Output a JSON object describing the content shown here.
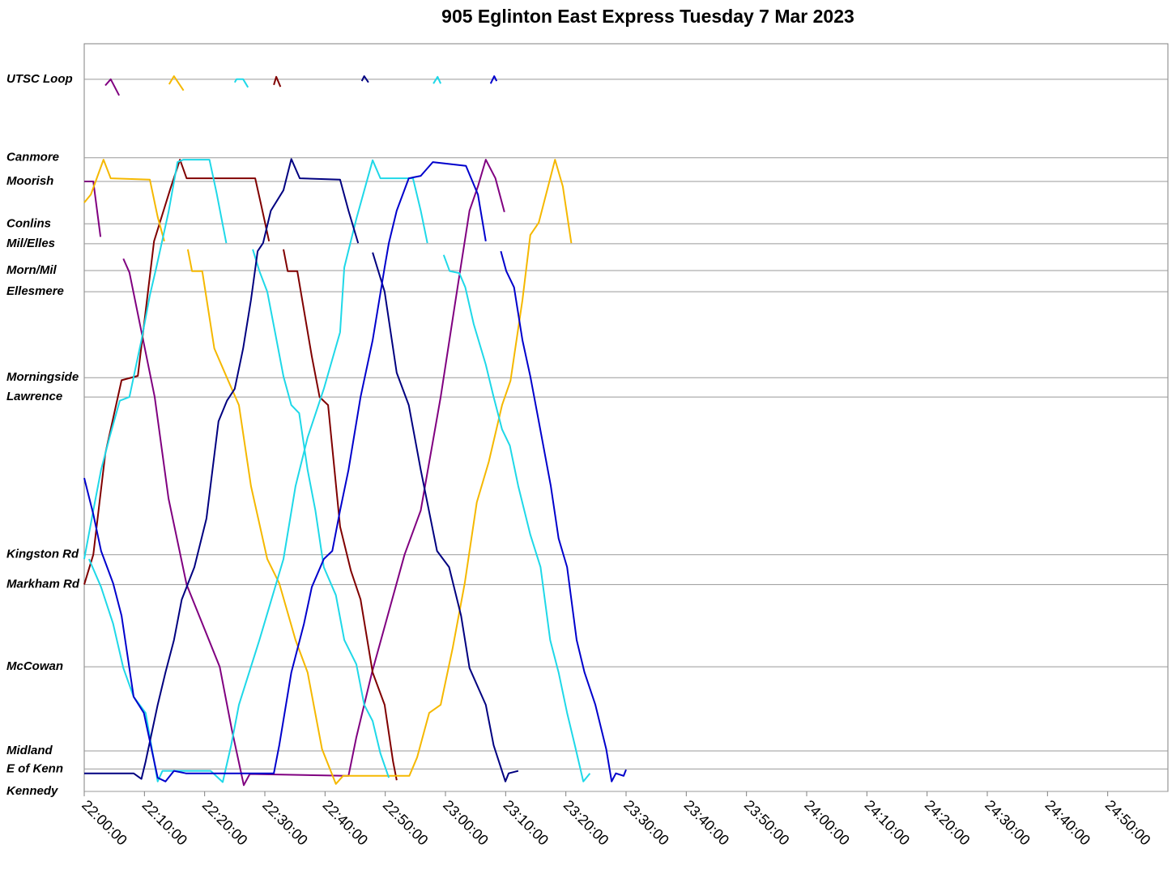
{
  "chart_data": {
    "type": "line",
    "title": "905 Eglinton East Express Tuesday 7 Mar 2023",
    "xlim": [
      0,
      180
    ],
    "xticks": [
      {
        "value": 0,
        "label": "22:00:00"
      },
      {
        "value": 10,
        "label": "22:10:00"
      },
      {
        "value": 20,
        "label": "22:20:00"
      },
      {
        "value": 30,
        "label": "22:30:00"
      },
      {
        "value": 40,
        "label": "22:40:00"
      },
      {
        "value": 50,
        "label": "22:50:00"
      },
      {
        "value": 60,
        "label": "23:00:00"
      },
      {
        "value": 70,
        "label": "23:10:00"
      },
      {
        "value": 80,
        "label": "23:20:00"
      },
      {
        "value": 90,
        "label": "23:30:00"
      },
      {
        "value": 100,
        "label": "23:40:00"
      },
      {
        "value": 110,
        "label": "23:50:00"
      },
      {
        "value": 120,
        "label": "24:00:00"
      },
      {
        "value": 130,
        "label": "24:10:00"
      },
      {
        "value": 140,
        "label": "24:20:00"
      },
      {
        "value": 150,
        "label": "24:30:00"
      },
      {
        "value": 160,
        "label": "24:40:00"
      },
      {
        "value": 170,
        "label": "24:50:00"
      }
    ],
    "ylim": [
      0,
      12
    ],
    "yticks": [
      {
        "value": 0,
        "label": "Kennedy"
      },
      {
        "value": 0.36,
        "label": "E of Kenn"
      },
      {
        "value": 0.65,
        "label": "Midland"
      },
      {
        "value": 2.0,
        "label": "McCowan"
      },
      {
        "value": 3.32,
        "label": "Markham Rd"
      },
      {
        "value": 3.8,
        "label": "Kingston Rd"
      },
      {
        "value": 6.33,
        "label": "Lawrence"
      },
      {
        "value": 6.64,
        "label": "Morningside"
      },
      {
        "value": 8.02,
        "label": "Ellesmere"
      },
      {
        "value": 8.36,
        "label": "Morn/Mil"
      },
      {
        "value": 8.79,
        "label": "Mil/Elles"
      },
      {
        "value": 9.11,
        "label": "Conlins"
      },
      {
        "value": 9.79,
        "label": "Moorish"
      },
      {
        "value": 10.17,
        "label": "Canmore"
      },
      {
        "value": 11.43,
        "label": "UTSC Loop"
      }
    ],
    "grid": true,
    "series": [
      {
        "color": "#800080",
        "x": [
          0,
          1.5,
          2.7,
          null,
          3.5,
          4.4,
          5.8,
          null,
          6.5,
          7.5,
          11.7,
          14,
          17,
          22.5,
          24.5,
          26.5,
          27.5,
          43.5,
          43.9,
          45.2,
          47.8,
          53.2,
          55.9,
          59.2,
          61.9,
          64,
          65.4,
          66.7,
          68.3,
          69.8
        ],
        "values": [
          9.79,
          9.79,
          8.9,
          null,
          11.33,
          11.43,
          11.17,
          null,
          8.55,
          8.33,
          6.33,
          4.7,
          3.32,
          2,
          1,
          0.1,
          0.28,
          0.25,
          0.25,
          0.87,
          1.91,
          3.8,
          4.51,
          6.33,
          8.02,
          9.32,
          9.71,
          10.14,
          9.84,
          9.3
        ]
      },
      {
        "color": "#800000",
        "x": [
          0,
          1.5,
          3.5,
          6.2,
          8.9,
          11.6,
          14.3,
          15.9,
          17,
          28.4,
          29.3,
          30.7,
          null,
          31.5,
          31.9,
          32.6,
          null,
          33.1,
          33.8,
          35.4,
          37.8,
          39.1,
          40.5,
          42.5,
          44.3,
          45.9,
          47.9,
          49.9,
          51.3,
          51.9
        ],
        "values": [
          3.32,
          3.8,
          5.42,
          6.6,
          6.67,
          8.83,
          9.67,
          10.14,
          9.84,
          9.84,
          9.45,
          8.83,
          null,
          11.34,
          11.47,
          11.31,
          null,
          8.7,
          8.35,
          8.35,
          6.98,
          6.33,
          6.2,
          4.25,
          3.54,
          3.08,
          1.91,
          1.39,
          0.48,
          0.18
        ]
      },
      {
        "color": "#f5b800",
        "x": [
          0,
          1.1,
          3.2,
          4.4,
          10.9,
          12.2,
          13.3,
          null,
          14.1,
          14.9,
          16.5,
          null,
          17.2,
          17.9,
          19.6,
          21.6,
          23.7,
          25.7,
          27.7,
          30.4,
          32.4,
          35.1,
          37.1,
          39.5,
          41.8,
          43,
          54,
          55.3,
          57.3,
          59.2,
          61.2,
          63.2,
          65.2,
          67.2,
          69.4,
          70.8,
          72.8,
          74.1,
          75.5,
          78.2,
          79.5,
          80.9
        ],
        "values": [
          9.45,
          9.58,
          10.14,
          9.84,
          9.82,
          9.22,
          8.83,
          null,
          11.35,
          11.48,
          11.25,
          null,
          8.7,
          8.35,
          8.35,
          7.11,
          6.64,
          6.2,
          4.9,
          3.73,
          3.34,
          2.43,
          1.91,
          0.68,
          0.12,
          0.25,
          0.25,
          0.55,
          1.26,
          1.39,
          2.3,
          3.34,
          4.64,
          5.29,
          6.2,
          6.59,
          7.89,
          8.93,
          9.13,
          10.14,
          9.71,
          8.8
        ]
      },
      {
        "color": "#1fd8e8",
        "x": [
          0,
          1.5,
          2.8,
          4.2,
          5.9,
          7.5,
          9.5,
          10.9,
          12,
          14,
          15.5,
          16.5,
          20.8,
          22,
          23.6,
          null,
          0.8,
          2.8,
          4.8,
          6.5,
          8.2,
          10.2,
          12.2,
          13,
          21,
          23,
          24.4,
          25.7,
          29.1,
          33.1,
          35.1,
          37.1,
          39.8,
          42.5,
          43.2,
          45.2,
          47.9,
          49.2,
          54.6,
          55.9,
          57,
          null,
          25,
          25.3,
          26.4,
          27.2,
          null,
          58,
          58.7,
          59.2,
          null,
          28,
          29.1,
          30.4,
          31.7,
          33.1,
          34.4,
          35.7,
          37.1,
          38.4,
          39.8,
          41.8,
          43.2,
          45.2,
          46.5,
          47.9,
          49.2,
          50.6,
          null,
          59.7,
          60.7,
          62.3,
          63.3,
          64.7,
          66.7,
          68,
          69.4,
          70.7,
          72.1,
          74.1,
          75.8,
          77.4,
          78.8,
          80.2,
          81.5,
          82.9,
          84
        ],
        "values": [
          3.73,
          4.51,
          5.16,
          5.68,
          6.27,
          6.33,
          7.24,
          7.96,
          8.42,
          9.3,
          10.1,
          10.14,
          10.14,
          9.6,
          8.8,
          null,
          3.73,
          3.28,
          2.69,
          1.98,
          1.52,
          1.26,
          0.16,
          0.33,
          0.33,
          0.15,
          0.74,
          1.39,
          2.43,
          3.73,
          4.9,
          5.68,
          6.46,
          7.37,
          8.41,
          9.19,
          10.13,
          9.84,
          9.84,
          9.32,
          8.8,
          null,
          11.38,
          11.43,
          11.43,
          11.3,
          null,
          11.36,
          11.47,
          11.36,
          null,
          8.7,
          8.35,
          8.02,
          7.37,
          6.66,
          6.2,
          6.07,
          5.16,
          4.51,
          3.6,
          3.15,
          2.43,
          2.04,
          1.39,
          1.13,
          0.61,
          0.22,
          null,
          8.61,
          8.35,
          8.32,
          8.09,
          7.5,
          6.85,
          6.33,
          5.81,
          5.55,
          4.9,
          4.12,
          3.6,
          2.43,
          1.91,
          1.26,
          0.74,
          0.16,
          0.29
        ]
      },
      {
        "color": "#000080",
        "x": [
          0,
          8.2,
          9.5,
          10.2,
          12.2,
          13.5,
          14.9,
          16.2,
          18.3,
          20.3,
          22.3,
          23.7,
          25,
          26.4,
          27.7,
          28.8,
          29.7,
          31,
          33.1,
          34.4,
          35.8,
          42.5,
          43.9,
          45.5,
          null,
          46.1,
          46.5,
          47.2,
          null,
          47.9,
          49.9,
          51.9,
          53.9,
          55.9,
          58.6,
          60.6,
          62.6,
          64,
          66.7,
          68,
          69.96,
          70.5,
          72.1
        ],
        "values": [
          0.29,
          0.29,
          0.2,
          0.48,
          1.39,
          1.91,
          2.43,
          3.08,
          3.6,
          4.38,
          5.94,
          6.27,
          6.46,
          7.11,
          7.89,
          8.67,
          8.8,
          9.32,
          9.65,
          10.15,
          9.84,
          9.82,
          9.32,
          8.8,
          null,
          11.4,
          11.48,
          11.38,
          null,
          8.65,
          8.02,
          6.72,
          6.2,
          5.16,
          3.86,
          3.6,
          2.82,
          1.98,
          1.39,
          0.74,
          0.16,
          0.29,
          0.33
        ]
      },
      {
        "color": "#0000cc",
        "x": [
          0,
          1.5,
          2.8,
          4.8,
          6.2,
          8.2,
          9.9,
          12.2,
          13.5,
          14.9,
          16.9,
          31.5,
          32.4,
          34.4,
          36.5,
          37.8,
          39.8,
          41.2,
          42.5,
          43.9,
          45.9,
          47.9,
          49.9,
          50.6,
          51.9,
          53.9,
          55.9,
          57.9,
          63.4,
          65.4,
          66.7,
          null,
          67.5,
          68.1,
          68.5,
          null,
          69.2,
          70.1,
          71.4,
          72.8,
          74.1,
          75.5,
          77.5,
          78.8,
          80.2,
          81.8,
          83.1,
          84.9,
          86.7,
          87.6,
          88.3,
          89.6,
          90
        ],
        "values": [
          5.03,
          4.45,
          3.86,
          3.34,
          2.82,
          1.52,
          1.26,
          0.22,
          0.16,
          0.33,
          0.29,
          0.29,
          0.74,
          1.91,
          2.69,
          3.28,
          3.73,
          3.86,
          4.51,
          5.16,
          6.33,
          7.24,
          8.41,
          8.8,
          9.32,
          9.84,
          9.88,
          10.1,
          10.04,
          9.58,
          8.83,
          null,
          11.36,
          11.48,
          11.4,
          null,
          8.67,
          8.35,
          8.09,
          7.24,
          6.66,
          5.94,
          4.9,
          4.06,
          3.6,
          2.43,
          1.91,
          1.39,
          0.68,
          0.16,
          0.29,
          0.25,
          0.35
        ]
      }
    ]
  }
}
